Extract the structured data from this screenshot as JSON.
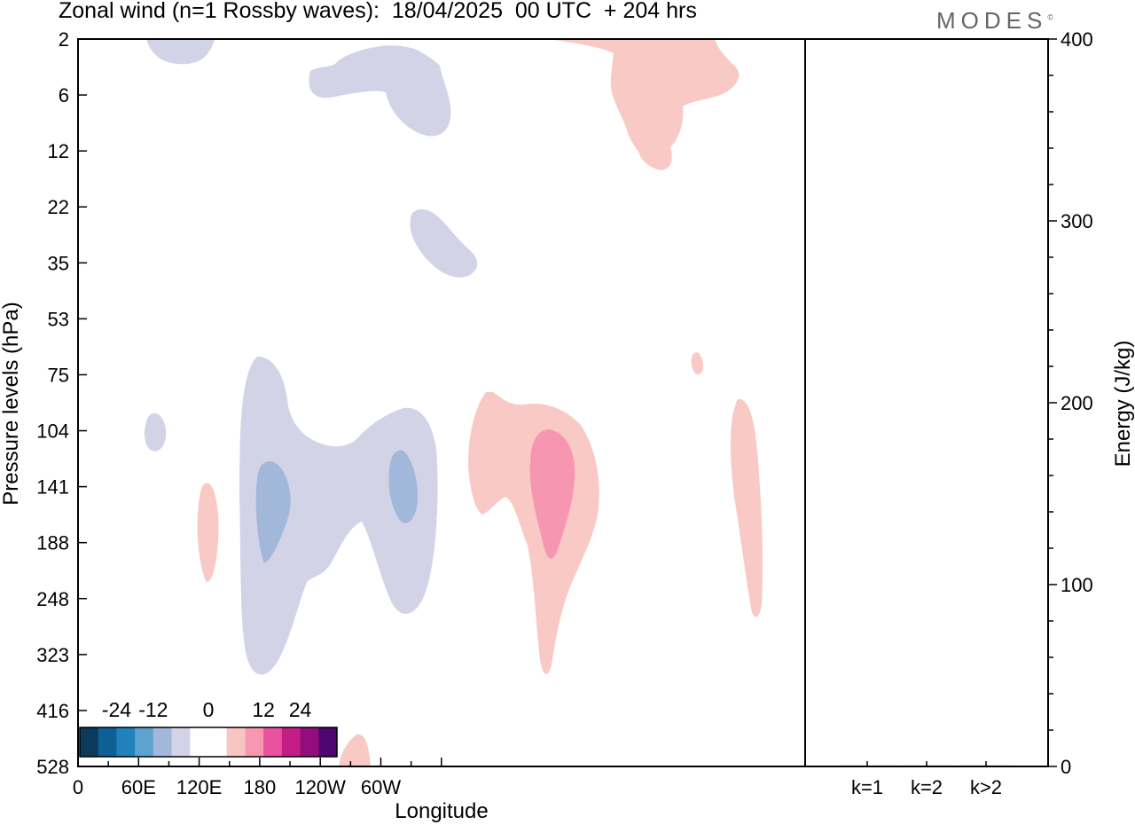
{
  "header": {
    "title": "Zonal wind (n=1 Rossby waves):  18/04/2025  00 UTC  + 204 hrs",
    "brand": "MODES",
    "brand_mark": "©"
  },
  "chart_data": {
    "type": "heatmap",
    "title": "Zonal wind (n=1 Rossby waves):  18/04/2025  00 UTC  + 204 hrs",
    "xlabel": "Longitude",
    "ylabel": "Pressure levels (hPa)",
    "x_ticks": [
      "0",
      "60E",
      "120E",
      "180",
      "120W",
      "60W"
    ],
    "y_ticks": [
      "2",
      "6",
      "12",
      "22",
      "35",
      "53",
      "75",
      "104",
      "141",
      "188",
      "248",
      "323",
      "416",
      "528"
    ],
    "y_scale": "log (pressure, top = 2 hPa)",
    "colorbar": {
      "tick_labels": [
        "-24",
        "-12",
        "0",
        "12",
        "24"
      ],
      "colors": [
        "#0b3a5a",
        "#0e5f93",
        "#2281bd",
        "#5ea3cf",
        "#a1b8da",
        "#d3d3e7",
        "#ffffff",
        "#ffffff",
        "#f7c6c3",
        "#f798b3",
        "#e8529e",
        "#c51d86",
        "#930d7c",
        "#4e0570"
      ]
    },
    "positive_color": "#f9c9c5",
    "positive_strong_color": "#f796b0",
    "negative_color": "#d3d3e7",
    "negative_strong_color": "#a1b8da",
    "energy_panel": {
      "ylabel": "Energy (J/kg)",
      "y_ticks": [
        "0",
        "100",
        "200",
        "300",
        "400"
      ],
      "ylim": [
        0,
        400
      ],
      "categories": [
        "k=1",
        "k=2",
        "k>2"
      ],
      "values": [
        0.5,
        0.5,
        0.5
      ]
    }
  }
}
